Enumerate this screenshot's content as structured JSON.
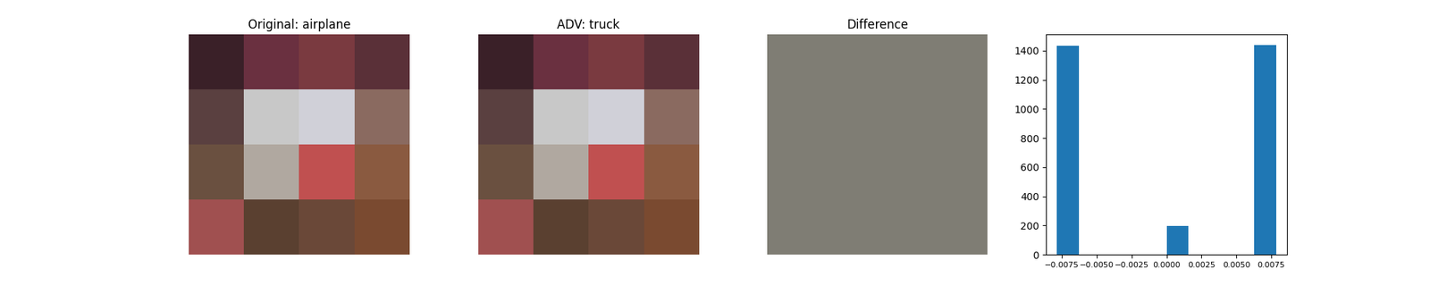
{
  "chart_data": [
    {
      "type": "image",
      "title": "Original: airplane",
      "pixels": [
        [
          "#3a2028",
          "#6a3040",
          "#7a3a40",
          "#5a3038"
        ],
        [
          "#5a4040",
          "#c8c8c8",
          "#d0d0d8",
          "#8a6a60"
        ],
        [
          "#6a5040",
          "#b0a8a0",
          "#c05050",
          "#8a5a40"
        ],
        [
          "#a05050",
          "#5a4030",
          "#6a4838",
          "#7a4a30"
        ]
      ]
    },
    {
      "type": "image",
      "title": "ADV: truck",
      "pixels": [
        [
          "#3a2028",
          "#6a3040",
          "#7a3a40",
          "#5a3038"
        ],
        [
          "#5a4040",
          "#c8c8c8",
          "#d0d0d8",
          "#8a6a60"
        ],
        [
          "#6a5040",
          "#b0a8a0",
          "#c05050",
          "#8a5a40"
        ],
        [
          "#a05050",
          "#5a4030",
          "#6a4838",
          "#7a4a30"
        ]
      ]
    },
    {
      "type": "image",
      "title": "Difference",
      "pixels": [
        [
          "#7f7d74"
        ]
      ]
    },
    {
      "type": "histogram",
      "color": "#1f77b4",
      "bins": [
        -0.00784,
        -0.006272,
        -0.004704,
        -0.003136,
        -0.001568,
        0.0,
        0.001568,
        0.003136,
        0.004704,
        0.006272,
        0.00784
      ],
      "counts": [
        1434,
        0,
        0,
        0,
        0,
        198,
        0,
        0,
        0,
        1440
      ],
      "xlim": [
        -0.00863,
        0.00863
      ],
      "xticks": [
        {
          "value": -0.0075,
          "label": "−0.0075"
        },
        {
          "value": -0.005,
          "label": "−0.0050"
        },
        {
          "value": -0.0025,
          "label": "−0.0025"
        },
        {
          "value": 0.0,
          "label": "0.0000"
        },
        0.0025,
        {
          "value": 0.005,
          "label": "0.0050"
        },
        0.0075
      ],
      "ylim": [
        0,
        1512
      ],
      "yticks": [
        0,
        200,
        400,
        600,
        800,
        1000,
        1200,
        1400
      ]
    }
  ]
}
